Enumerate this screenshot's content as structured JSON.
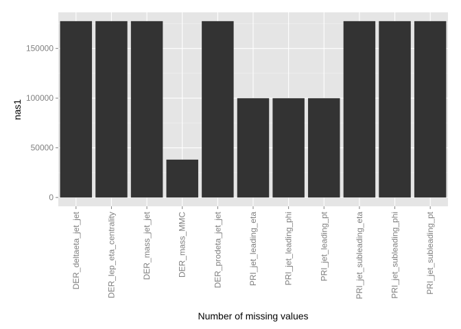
{
  "chart_data": {
    "type": "bar",
    "categories": [
      "DER_deltaeta_jet_jet",
      "DER_lep_eta_centrality",
      "DER_mass_jet_jet",
      "DER_mass_MMC",
      "DER_prodeta_jet_jet",
      "PRI_jet_leading_eta",
      "PRI_jet_leading_phi",
      "PRI_jet_leading_pt",
      "PRI_jet_subleading_eta",
      "PRI_jet_subleading_phi",
      "PRI_jet_subleading_pt"
    ],
    "values": [
      177457,
      177457,
      177457,
      38114,
      177457,
      99913,
      99913,
      99913,
      177457,
      177457,
      177457
    ],
    "title": "",
    "xlabel": "Number of missing values",
    "ylabel": "nas1",
    "ylim": [
      -8873,
      186330
    ],
    "yticks": [
      0,
      50000,
      100000,
      150000
    ],
    "ytick_labels": [
      "0",
      "50000",
      "100000",
      "150000"
    ],
    "grid": true,
    "bar_color": "#333333",
    "panel_color": "#e5e5e5"
  }
}
